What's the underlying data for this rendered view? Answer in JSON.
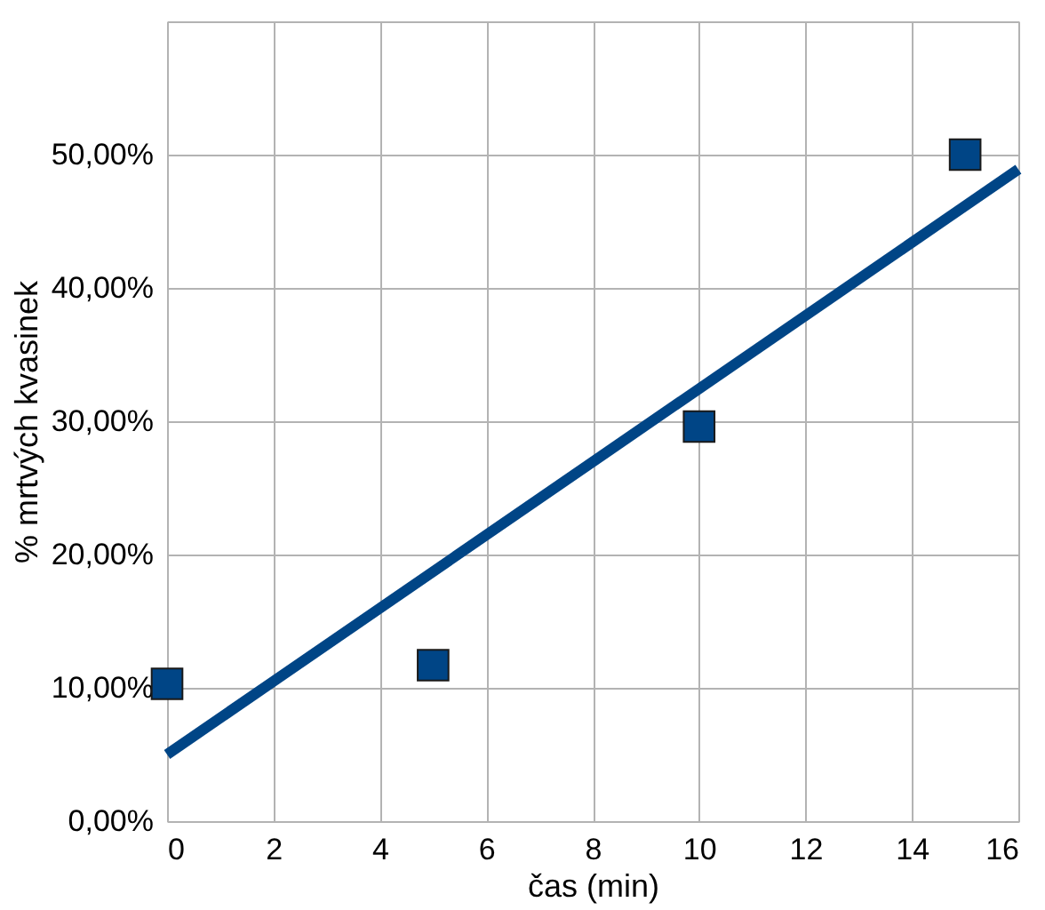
{
  "chart_data": {
    "type": "scatter",
    "xlabel": "čas (min)",
    "ylabel": "% mrtvých kvasinek",
    "xlim": [
      0,
      16
    ],
    "xticks": [
      0,
      2,
      4,
      6,
      8,
      10,
      12,
      14,
      16
    ],
    "ylim": [
      0,
      60
    ],
    "yticks": [
      {
        "value": 0,
        "label": "0,00%"
      },
      {
        "value": 10,
        "label": "10,00%"
      },
      {
        "value": 20,
        "label": "20,00%"
      },
      {
        "value": 30,
        "label": "30,00%"
      },
      {
        "value": 40,
        "label": "40,00%"
      },
      {
        "value": 50,
        "label": "50,00%"
      },
      {
        "value": 60,
        "label": null
      }
    ],
    "grid": true,
    "marker": "square",
    "series": [
      {
        "color": "#004586",
        "x": [
          0,
          5,
          10,
          15
        ],
        "values": [
          10.3,
          11.7,
          29.6,
          50
        ]
      },
      {
        "type": "line",
        "color": "#004586",
        "x": [
          0,
          16
        ],
        "values": [
          5.0,
          48.9
        ],
        "marker": "none",
        "line_style": "solid"
      }
    ]
  }
}
